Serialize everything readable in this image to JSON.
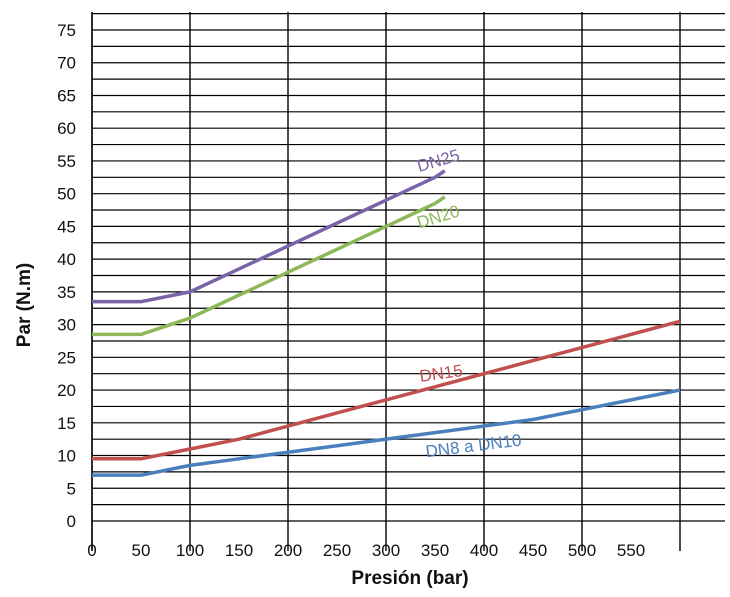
{
  "chart_data": {
    "type": "line",
    "title": "",
    "xlabel": "Presión (bar)",
    "ylabel": "Par (N.m)",
    "xlim": [
      0,
      600
    ],
    "ylim": [
      0,
      75
    ],
    "x_ticks": [
      "0",
      "50",
      "100",
      "150",
      "200",
      "250",
      "300",
      "350",
      "400",
      "450",
      "500",
      "550"
    ],
    "y_ticks": [
      "75",
      "70",
      "65",
      "60",
      "55",
      "50",
      "45",
      "40",
      "35",
      "30",
      "25",
      "20",
      "15",
      "10",
      "5",
      "0"
    ],
    "grid": true,
    "series": [
      {
        "name": "DN25",
        "color": "#7a63a8",
        "x": [
          0,
          50,
          100,
          150,
          200,
          250,
          300,
          350,
          360
        ],
        "y": [
          33.5,
          33.5,
          35,
          38.5,
          42,
          45.5,
          49,
          52.5,
          53.5
        ]
      },
      {
        "name": "DN20",
        "color": "#8cb85a",
        "x": [
          0,
          50,
          100,
          150,
          200,
          250,
          300,
          350,
          360
        ],
        "y": [
          28.5,
          28.5,
          31,
          34.5,
          38,
          41.5,
          45,
          48.5,
          49.5
        ]
      },
      {
        "name": "DN15",
        "color": "#c0504d",
        "x": [
          0,
          50,
          100,
          150,
          200,
          250,
          300,
          350,
          400,
          450,
          500,
          550,
          600
        ],
        "y": [
          9.5,
          9.5,
          11,
          12.5,
          14.5,
          16.5,
          18.5,
          20.5,
          22.5,
          24.5,
          26.5,
          28.5,
          30.5
        ]
      },
      {
        "name": "DN8 a DN10",
        "color": "#4a7fbd",
        "x": [
          0,
          50,
          100,
          150,
          200,
          250,
          300,
          350,
          400,
          450,
          500,
          550,
          600
        ],
        "y": [
          7,
          7,
          8.5,
          9.5,
          10.5,
          11.5,
          12.5,
          13.5,
          14.5,
          15.5,
          17,
          18.5,
          20
        ]
      }
    ]
  }
}
